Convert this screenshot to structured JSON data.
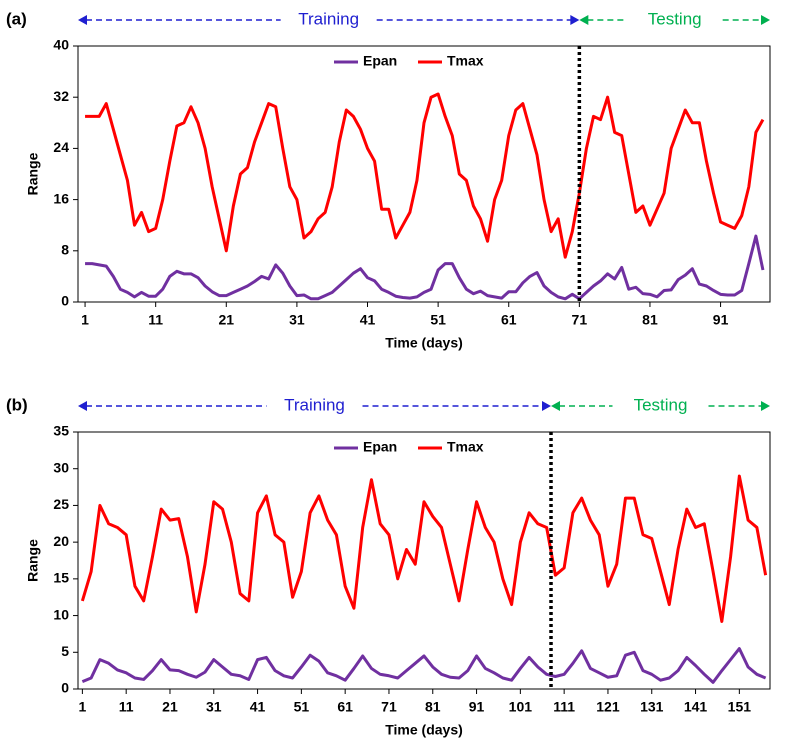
{
  "chart_data": [
    {
      "type": "line",
      "panel_label": "(a)",
      "xlabel": "Time (days)",
      "ylabel": "Range",
      "annotations": [
        "Training",
        "Testing"
      ],
      "divider_x": 71,
      "legend": "top",
      "xlim": [
        0,
        98
      ],
      "xticks": [
        1,
        11,
        21,
        31,
        41,
        51,
        61,
        71,
        81,
        91
      ],
      "ylim": [
        0,
        40
      ],
      "yticks": [
        0,
        8,
        16,
        24,
        32,
        40
      ],
      "x": [
        1,
        2,
        3,
        4,
        5,
        6,
        7,
        8,
        9,
        10,
        11,
        12,
        13,
        14,
        15,
        16,
        17,
        18,
        19,
        20,
        21,
        22,
        23,
        24,
        25,
        26,
        27,
        28,
        29,
        30,
        31,
        32,
        33,
        34,
        35,
        36,
        37,
        38,
        39,
        40,
        41,
        42,
        43,
        44,
        45,
        46,
        47,
        48,
        49,
        50,
        51,
        52,
        53,
        54,
        55,
        56,
        57,
        58,
        59,
        60,
        61,
        62,
        63,
        64,
        65,
        66,
        67,
        68,
        69,
        70,
        71,
        72,
        73,
        74,
        75,
        76,
        77,
        78,
        79,
        80,
        81,
        82,
        83,
        84,
        85,
        86,
        87,
        88,
        89,
        90,
        91,
        92,
        93,
        94,
        95,
        96,
        97
      ],
      "series": [
        {
          "name": "Epan",
          "color": "#7030a0",
          "values": [
            6,
            6,
            5.8,
            5.6,
            4,
            2,
            1.5,
            0.8,
            1.5,
            0.9,
            0.9,
            2,
            4,
            4.8,
            4.4,
            4.4,
            3.8,
            2.5,
            1.6,
            1,
            1,
            1.5,
            2,
            2.5,
            3.2,
            4,
            3.6,
            5.8,
            4.5,
            2.5,
            1,
            1.1,
            0.5,
            0.5,
            1,
            1.5,
            2.5,
            3.5,
            4.5,
            5.2,
            3.8,
            3.3,
            2,
            1.5,
            0.9,
            0.7,
            0.6,
            0.8,
            1.5,
            2,
            5,
            6,
            6,
            3.8,
            2,
            1.3,
            1.7,
            1,
            0.8,
            0.6,
            1.6,
            1.6,
            3,
            4,
            4.6,
            2.5,
            1.5,
            0.8,
            0.5,
            1.2,
            0.5,
            1.5,
            2.5,
            3.3,
            4.4,
            3.6,
            5.4,
            2,
            2.3,
            1.3,
            1.2,
            0.8,
            1.8,
            1.9,
            3.5,
            4.2,
            5.2,
            2.8,
            2.5,
            1.8,
            1.2,
            1.1,
            1.1,
            1.8,
            6,
            10.3,
            5
          ]
        },
        {
          "name": "Tmax",
          "color": "#ff0000",
          "values": [
            29,
            29,
            29,
            31,
            27,
            23,
            19,
            12,
            14,
            11,
            11.5,
            16,
            22,
            27.5,
            28,
            30.5,
            28,
            24,
            18,
            13,
            8,
            15,
            20,
            21,
            25,
            28,
            31,
            30.5,
            24,
            18,
            16,
            10,
            11,
            13,
            14,
            18,
            25,
            30,
            29,
            27,
            24,
            22,
            14.5,
            14.5,
            10,
            12,
            14,
            19,
            28,
            32,
            32.5,
            29,
            26,
            20,
            19,
            15,
            13,
            9.5,
            16,
            19,
            26,
            30,
            31,
            27,
            23,
            16,
            11,
            13,
            7,
            11,
            17,
            24,
            29,
            28.5,
            32,
            26.5,
            26,
            20,
            14,
            15,
            12,
            14.5,
            17,
            24,
            27,
            30,
            28,
            28,
            22,
            17,
            12.5,
            12,
            11.5,
            13.5,
            18,
            26.5,
            28.5
          ]
        }
      ]
    },
    {
      "type": "line",
      "panel_label": "(b)",
      "xlabel": "Time (days)",
      "ylabel": "Range",
      "annotations": [
        "Training",
        "Testing"
      ],
      "divider_x": 108,
      "legend": "top",
      "xlim": [
        0,
        158
      ],
      "xticks": [
        1,
        11,
        21,
        31,
        41,
        51,
        61,
        71,
        81,
        91,
        101,
        111,
        121,
        131,
        141,
        151
      ],
      "ylim": [
        0,
        35
      ],
      "yticks": [
        0,
        5,
        10,
        15,
        20,
        25,
        30,
        35
      ],
      "x": [
        1,
        3,
        5,
        7,
        9,
        11,
        13,
        15,
        17,
        19,
        21,
        23,
        25,
        27,
        29,
        31,
        33,
        35,
        37,
        39,
        41,
        43,
        45,
        47,
        49,
        51,
        53,
        55,
        57,
        59,
        61,
        63,
        65,
        67,
        69,
        71,
        73,
        75,
        77,
        79,
        81,
        83,
        85,
        87,
        89,
        91,
        93,
        95,
        97,
        99,
        101,
        103,
        105,
        107,
        109,
        111,
        113,
        115,
        117,
        119,
        121,
        123,
        125,
        127,
        129,
        131,
        133,
        135,
        137,
        139,
        141,
        143,
        145,
        147,
        149,
        151,
        153,
        155,
        157
      ],
      "series": [
        {
          "name": "Epan",
          "color": "#7030a0",
          "values": [
            1,
            1.5,
            4,
            3.5,
            2.6,
            2.2,
            1.5,
            1.3,
            2.5,
            4,
            2.6,
            2.5,
            2,
            1.6,
            2.3,
            4,
            3,
            2,
            1.8,
            1.3,
            4,
            4.3,
            2.5,
            1.8,
            1.5,
            3,
            4.6,
            3.8,
            2.2,
            1.8,
            1.2,
            2.8,
            4.5,
            2.8,
            2,
            1.8,
            1.5,
            2.5,
            3.5,
            4.5,
            3,
            2,
            1.6,
            1.5,
            2.5,
            4.5,
            2.8,
            2.2,
            1.5,
            1.2,
            2.8,
            4.3,
            3,
            2,
            1.7,
            2,
            3.5,
            5.2,
            2.8,
            2.2,
            1.6,
            1.8,
            4.6,
            5,
            2.5,
            2,
            1.2,
            1.5,
            2.5,
            4.3,
            3.2,
            2,
            0.9,
            2.5,
            4,
            5.5,
            3,
            2,
            1.5
          ]
        },
        {
          "name": "Tmax",
          "color": "#ff0000",
          "values": [
            12,
            16,
            25,
            22.5,
            22,
            21,
            14,
            12,
            18,
            24.5,
            23,
            23.2,
            18,
            10.5,
            17,
            25.5,
            24.5,
            20,
            13,
            12,
            24,
            26.3,
            21,
            20,
            12.5,
            16,
            24,
            26.3,
            23,
            21,
            14,
            11,
            22,
            28.5,
            22.5,
            21,
            15,
            19,
            17,
            25.5,
            23.5,
            22,
            17,
            12,
            19,
            25.5,
            22,
            20,
            15,
            11.5,
            20,
            24,
            22.5,
            22,
            15.5,
            16.5,
            24,
            26,
            23,
            21,
            14,
            17,
            26,
            26,
            21,
            20.5,
            16,
            11.5,
            19,
            24.5,
            22,
            22.5,
            16,
            9.2,
            18,
            29,
            23,
            22,
            15.5
          ]
        }
      ]
    }
  ]
}
